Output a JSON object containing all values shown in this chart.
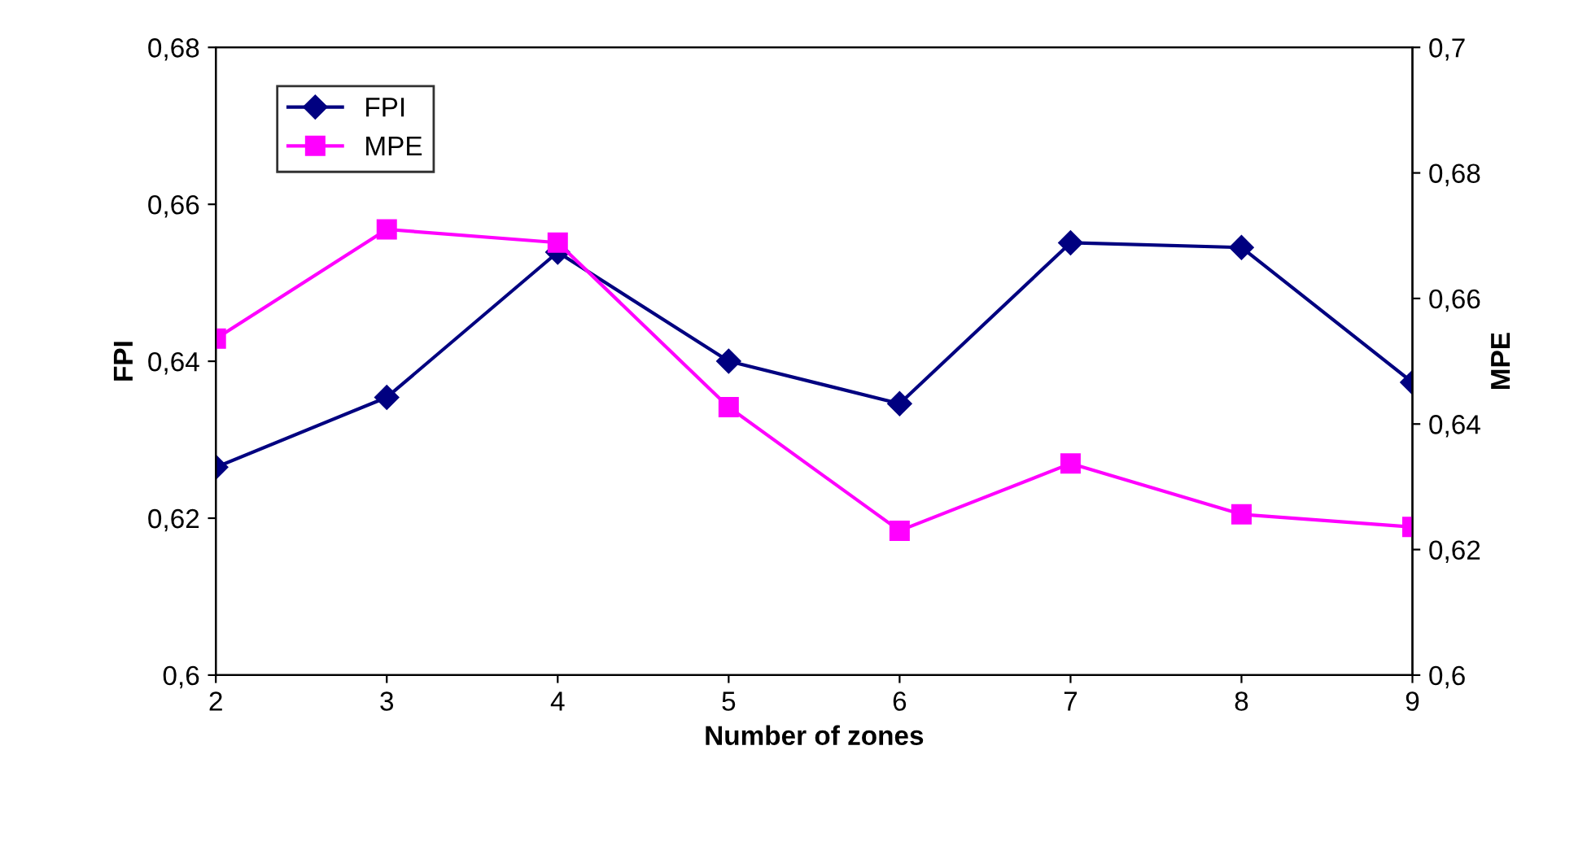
{
  "chart_data": {
    "type": "line",
    "xlabel": "Number of zones",
    "ylabel": "FPI",
    "y2label": "MPE",
    "x": [
      2,
      3,
      4,
      5,
      6,
      7,
      8,
      9
    ],
    "series": [
      {
        "name": "FPI",
        "color": "#000080",
        "marker": "diamond",
        "values": [
          0.6265,
          0.6354,
          0.6539,
          0.64,
          0.6346,
          0.6551,
          0.6545,
          0.6373
        ]
      },
      {
        "name": "MPE",
        "color": "#ff00ff",
        "marker": "square",
        "axis": "y2",
        "values": [
          0.6536,
          0.671,
          0.6689,
          0.6427,
          0.623,
          0.6337,
          0.6256,
          0.6236
        ]
      }
    ],
    "xlim": [
      2,
      9
    ],
    "xticks": [
      2,
      3,
      4,
      5,
      6,
      7,
      8,
      9
    ],
    "ylim": [
      0.6,
      0.68
    ],
    "yticks": [
      {
        "value": 0.6,
        "label": "0,6"
      },
      {
        "value": 0.62,
        "label": "0,62"
      },
      {
        "value": 0.64,
        "label": "0,64"
      },
      {
        "value": 0.66,
        "label": "0,66"
      },
      {
        "value": 0.68,
        "label": "0,68"
      }
    ],
    "y2lim": [
      0.6,
      0.7
    ],
    "y2ticks": [
      {
        "value": 0.6,
        "label": "0,6"
      },
      {
        "value": 0.62,
        "label": "0,62"
      },
      {
        "value": 0.64,
        "label": "0,64"
      },
      {
        "value": 0.66,
        "label": "0,66"
      },
      {
        "value": 0.68,
        "label": "0,68"
      },
      {
        "value": 0.7,
        "label": "0,7"
      }
    ],
    "grid": false,
    "legend": "top left",
    "line_style": "solid"
  }
}
